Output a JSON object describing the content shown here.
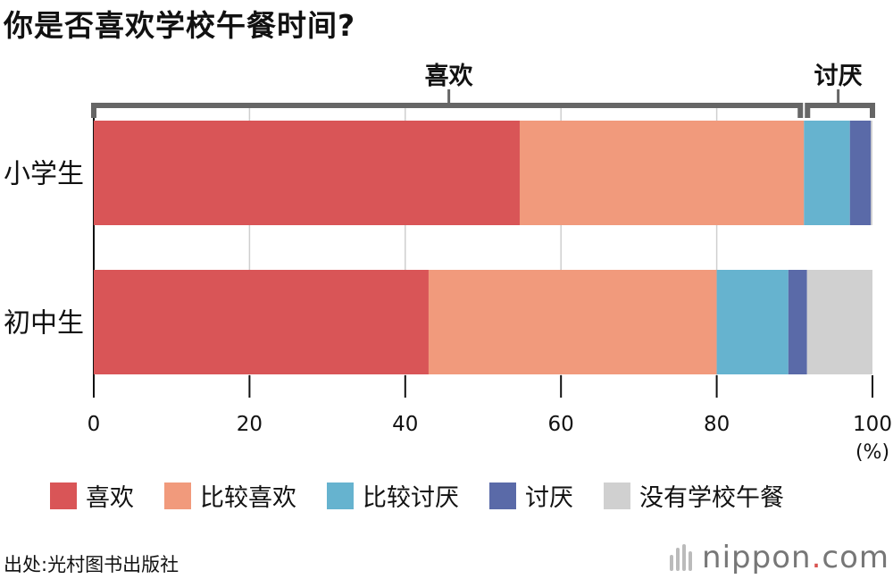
{
  "chart_data": {
    "type": "bar",
    "orientation": "horizontal",
    "stacked": true,
    "title": "你是否喜欢学校午餐时间?",
    "categories": [
      "小学生",
      "初中生"
    ],
    "series": [
      {
        "name": "喜欢",
        "color": "#d95557",
        "values": [
          54.7,
          43.0
        ]
      },
      {
        "name": "比较喜欢",
        "color": "#f19a7c",
        "values": [
          36.5,
          37.0
        ]
      },
      {
        "name": "比较讨厌",
        "color": "#66b3cf",
        "values": [
          5.9,
          9.2
        ]
      },
      {
        "name": "讨厌",
        "color": "#5a6aa8",
        "values": [
          2.7,
          2.4
        ]
      },
      {
        "name": "没有学校午餐",
        "color": "#d0d0d0",
        "values": [
          0.2,
          8.4
        ]
      }
    ],
    "xlim": [
      0,
      100
    ],
    "xticks": [
      "0",
      "20",
      "40",
      "60",
      "80",
      "100"
    ],
    "xunit": "(%)",
    "brackets": [
      {
        "label": "喜欢",
        "from": 0,
        "to": 91.2
      },
      {
        "label": "讨厌",
        "from": 91.2,
        "to": 100
      }
    ],
    "grid": true,
    "legend_position": "bottom"
  },
  "source": "出处:光村图书出版社",
  "brand": {
    "name": "nippon",
    "dot": ".",
    "suffix": "com"
  }
}
